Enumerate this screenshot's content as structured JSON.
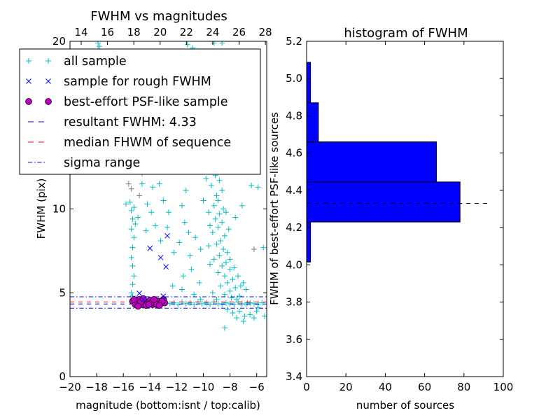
{
  "chart_data": [
    {
      "type": "scatter",
      "title": "FWHM vs magnitudes",
      "xlabel": "magnitude (bottom:isnt / top:calib)",
      "ylabel": "FWHM (pix)",
      "xlim": [
        -20,
        -5.25
      ],
      "ylim": [
        0,
        20
      ],
      "top_xlim": [
        13.15,
        28.1
      ],
      "xticks": [
        "−20",
        "−18",
        "−16",
        "−14",
        "−12",
        "−10",
        "−8",
        "−6"
      ],
      "xtick_values": [
        -20,
        -18,
        -16,
        -14,
        -12,
        -10,
        -8,
        -6
      ],
      "top_xticks": [
        "14",
        "16",
        "18",
        "20",
        "22",
        "24",
        "26",
        "28"
      ],
      "top_xtick_values": [
        14,
        16,
        18,
        20,
        22,
        24,
        26,
        28
      ],
      "yticks": [
        "0",
        "5",
        "10",
        "20"
      ],
      "ytick_values": [
        0,
        5,
        10,
        20
      ],
      "legend_position": "top-left",
      "legend": [
        {
          "label": "all sample",
          "marker": "+",
          "color": "#00bfbf"
        },
        {
          "label": "sample for rough FWHM",
          "marker": "x",
          "color": "#0000ff"
        },
        {
          "label": "best-effort PSF-like sample",
          "marker": "o",
          "color": "#bf00bf"
        },
        {
          "label": "resultant FWHM: 4.33",
          "line": "dashed",
          "color": "#0000ff"
        },
        {
          "label": "median FHWM of sequence",
          "line": "dashed",
          "color": "#ff0000"
        },
        {
          "label": "sigma range",
          "line": "dashdot",
          "color": "#0000ff"
        }
      ],
      "hlines": {
        "resultant": 4.33,
        "median": 4.45,
        "sigma_low": 4.08,
        "sigma_high": 4.76
      },
      "other_points_color": "#808080",
      "other_points": [
        [
          -15.6,
          11.5
        ],
        [
          -15.4,
          11.2
        ],
        [
          -14.6,
          12.1
        ],
        [
          -10.1,
          13.0
        ],
        [
          -7.3,
          18.5
        ],
        [
          -6.2,
          7.6
        ],
        [
          -14.8,
          10.8
        ],
        [
          -6.7,
          4.4
        ]
      ],
      "series_all": [
        [
          -15.4,
          9.9
        ],
        [
          -15.3,
          9.4
        ],
        [
          -15.4,
          8.8
        ],
        [
          -15.2,
          8.3
        ],
        [
          -15.3,
          7.7
        ],
        [
          -15.4,
          7.1
        ],
        [
          -15.3,
          6.6
        ],
        [
          -15.2,
          6.0
        ],
        [
          -15.3,
          5.5
        ],
        [
          -15.4,
          5.0
        ],
        [
          -15.3,
          4.8
        ],
        [
          -15.1,
          9.1
        ],
        [
          -15.5,
          10.4
        ],
        [
          -15.2,
          10.1
        ],
        [
          -17.9,
          19.9
        ],
        [
          -17.8,
          19.7
        ],
        [
          -17.9,
          19.5
        ],
        [
          -11.2,
          19.8
        ],
        [
          -10.8,
          19.6
        ],
        [
          -9.2,
          19.9
        ],
        [
          -8.6,
          19.9
        ],
        [
          -7.3,
          20.0
        ],
        [
          -14.6,
          11.5
        ],
        [
          -13.8,
          11.3
        ],
        [
          -13.3,
          11.5
        ],
        [
          -14.2,
          10.3
        ],
        [
          -13.9,
          9.8
        ],
        [
          -14.9,
          9.5
        ],
        [
          -13.6,
          9.0
        ],
        [
          -14.3,
          8.7
        ],
        [
          -12.7,
          8.9
        ],
        [
          -13.2,
          8.1
        ],
        [
          -11.6,
          10.2
        ],
        [
          -11.3,
          11.1
        ],
        [
          -11.4,
          9.2
        ],
        [
          -11.1,
          8.6
        ],
        [
          -11.8,
          8.0
        ],
        [
          -12.2,
          7.4
        ],
        [
          -11.0,
          7.2
        ],
        [
          -10.6,
          8.3
        ],
        [
          -10.2,
          7.6
        ],
        [
          -12.6,
          9.8
        ],
        [
          -13.0,
          10.5
        ],
        [
          -15.8,
          10.3
        ],
        [
          -10.9,
          6.4
        ],
        [
          -11.5,
          6.0
        ],
        [
          -10.3,
          5.6
        ],
        [
          -12.3,
          5.4
        ],
        [
          -10.7,
          4.9
        ],
        [
          -11.6,
          5.2
        ],
        [
          -6.4,
          11.4
        ],
        [
          -5.5,
          7.7
        ],
        [
          -5.9,
          11.3
        ],
        [
          -7.1,
          10.2
        ],
        [
          -7.6,
          9.5
        ],
        [
          -9.8,
          11.8
        ],
        [
          -10.0,
          10.5
        ],
        [
          -9.6,
          9.8
        ],
        [
          -9.3,
          12.9
        ],
        [
          -9.0,
          12.6
        ],
        [
          -8.7,
          12.3
        ],
        [
          -9.1,
          12.0
        ],
        [
          -8.8,
          11.7
        ],
        [
          -9.4,
          11.4
        ],
        [
          -8.6,
          11.1
        ],
        [
          -9.0,
          10.8
        ],
        [
          -8.9,
          10.5
        ],
        [
          -9.2,
          10.2
        ],
        [
          -8.5,
          10.0
        ],
        [
          -8.8,
          9.7
        ],
        [
          -9.1,
          9.4
        ],
        [
          -8.6,
          9.2
        ],
        [
          -8.9,
          8.9
        ],
        [
          -9.3,
          8.6
        ],
        [
          -8.4,
          8.4
        ],
        [
          -8.7,
          8.1
        ],
        [
          -9.0,
          7.9
        ],
        [
          -8.5,
          7.6
        ],
        [
          -8.2,
          7.4
        ],
        [
          -8.8,
          7.2
        ],
        [
          -9.2,
          7.0
        ],
        [
          -8.3,
          6.8
        ],
        [
          -8.6,
          6.6
        ],
        [
          -8.0,
          6.4
        ],
        [
          -8.9,
          6.2
        ],
        [
          -8.4,
          6.0
        ],
        [
          -7.8,
          5.8
        ],
        [
          -8.2,
          5.6
        ],
        [
          -8.7,
          5.4
        ],
        [
          -7.6,
          5.3
        ],
        [
          -8.0,
          5.1
        ],
        [
          -9.3,
          5.0
        ],
        [
          -8.4,
          4.9
        ],
        [
          -7.3,
          4.8
        ],
        [
          -9.5,
          6.7
        ],
        [
          -9.6,
          7.8
        ],
        [
          -9.5,
          9.0
        ],
        [
          -8.1,
          8.8
        ],
        [
          -8.3,
          9.8
        ],
        [
          -8.0,
          7.0
        ],
        [
          -7.7,
          6.5
        ],
        [
          -7.4,
          6.0
        ],
        [
          -7.0,
          5.6
        ],
        [
          -6.8,
          5.2
        ],
        [
          -7.2,
          5.4
        ],
        [
          -7.9,
          4.7
        ],
        [
          -8.6,
          13.5
        ],
        [
          -8.9,
          14.0
        ],
        [
          -9.2,
          13.8
        ],
        [
          -8.4,
          12.8
        ],
        [
          -12.8,
          4.4
        ],
        [
          -12.5,
          4.35
        ],
        [
          -12.2,
          4.4
        ],
        [
          -11.9,
          4.3
        ],
        [
          -11.6,
          4.45
        ],
        [
          -11.3,
          4.35
        ],
        [
          -11.0,
          4.4
        ],
        [
          -10.7,
          4.3
        ],
        [
          -10.4,
          4.45
        ],
        [
          -10.1,
          4.35
        ],
        [
          -9.8,
          4.4
        ],
        [
          -9.5,
          4.3
        ],
        [
          -9.2,
          4.45
        ],
        [
          -8.9,
          4.35
        ],
        [
          -8.6,
          4.3
        ],
        [
          -8.3,
          4.4
        ],
        [
          -8.0,
          4.35
        ],
        [
          -7.7,
          4.3
        ],
        [
          -7.4,
          4.45
        ],
        [
          -7.1,
          4.35
        ],
        [
          -6.8,
          4.3
        ],
        [
          -6.5,
          4.4
        ],
        [
          -6.2,
          4.35
        ],
        [
          -5.9,
          4.3
        ],
        [
          -5.6,
          4.4
        ],
        [
          -10.2,
          4.6
        ],
        [
          -9.0,
          4.6
        ],
        [
          -7.5,
          4.6
        ],
        [
          -8.2,
          4.0
        ],
        [
          -7.8,
          3.8
        ],
        [
          -7.3,
          3.9
        ],
        [
          -6.9,
          3.6
        ],
        [
          -6.5,
          3.7
        ],
        [
          -7.0,
          3.3
        ],
        [
          -8.4,
          2.9
        ],
        [
          -6.2,
          3.5
        ],
        [
          -5.9,
          4.1
        ],
        [
          -7.5,
          3.5
        ],
        [
          -6.0,
          3.9
        ],
        [
          -5.4,
          3.6
        ]
      ],
      "series_rough": [
        [
          -14.0,
          7.65
        ],
        [
          -12.7,
          8.4
        ],
        [
          -13.2,
          7.1
        ],
        [
          -12.8,
          6.55
        ],
        [
          -14.8,
          4.97
        ],
        [
          -13.0,
          4.8
        ],
        [
          -14.5,
          4.6
        ]
      ],
      "series_psf": [
        [
          -15.3,
          4.5
        ],
        [
          -15.0,
          4.4
        ],
        [
          -14.8,
          4.6
        ],
        [
          -14.6,
          4.3
        ],
        [
          -14.4,
          4.5
        ],
        [
          -14.2,
          4.4
        ],
        [
          -14.0,
          4.55
        ],
        [
          -13.8,
          4.3
        ],
        [
          -13.6,
          4.45
        ],
        [
          -13.4,
          4.5
        ],
        [
          -13.2,
          4.35
        ],
        [
          -13.0,
          4.6
        ],
        [
          -12.9,
          4.4
        ],
        [
          -15.1,
          4.3
        ],
        [
          -14.7,
          4.45
        ],
        [
          -14.3,
          4.25
        ],
        [
          -13.9,
          4.4
        ],
        [
          -13.5,
          4.3
        ],
        [
          -13.1,
          4.5
        ],
        [
          -14.9,
          4.2
        ],
        [
          -14.5,
          4.65
        ],
        [
          -13.7,
          4.6
        ],
        [
          -13.3,
          4.25
        ],
        [
          -15.2,
          4.6
        ],
        [
          -14.1,
          4.3
        ]
      ]
    },
    {
      "type": "bar",
      "orientation": "horizontal",
      "title": "histogram of FWHM",
      "xlabel": "number of sources",
      "ylabel": "FWHM of best-effort PSF-like sources",
      "xlim": [
        0,
        100
      ],
      "ylim": [
        3.4,
        5.2
      ],
      "xticks": [
        "0",
        "20",
        "40",
        "60",
        "80",
        "100"
      ],
      "xtick_values": [
        0,
        20,
        40,
        60,
        80,
        100
      ],
      "yticks": [
        "3.4",
        "3.6",
        "3.8",
        "4.0",
        "4.2",
        "4.4",
        "4.6",
        "4.8",
        "5.0",
        "5.2"
      ],
      "ytick_values": [
        3.4,
        3.6,
        3.8,
        4.0,
        4.2,
        4.4,
        4.6,
        4.8,
        5.0,
        5.2
      ],
      "bin_edges": [
        4.015,
        4.23,
        4.445,
        4.66,
        4.87,
        5.087
      ],
      "counts": [
        2,
        78,
        66,
        6,
        2
      ],
      "bar_color": "#0000ff",
      "reference_line": {
        "value": 4.33,
        "xmax": 92
      }
    }
  ]
}
